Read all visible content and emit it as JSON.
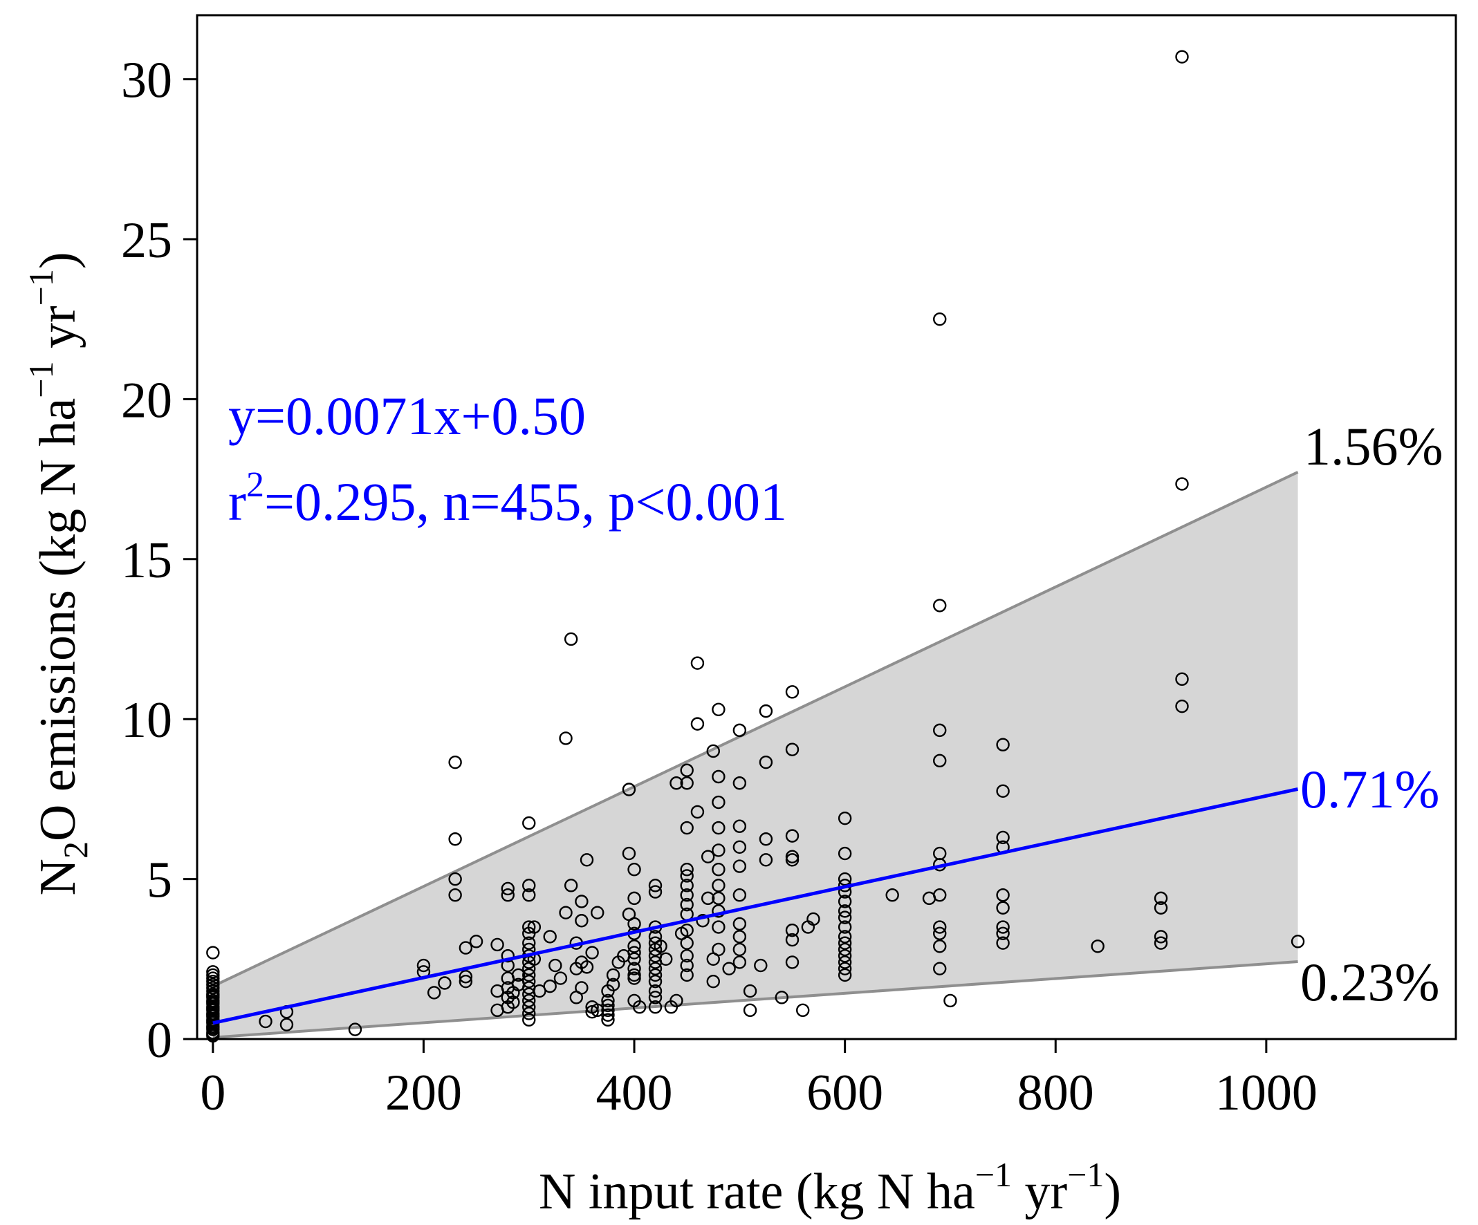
{
  "chart_data": {
    "type": "scatter",
    "title": "",
    "xlabel": "N input rate (kg N ha",
    "xlabel_sup1": "−1",
    "xlabel_mid": " yr",
    "xlabel_sup2": "−1",
    "xlabel_end": ")",
    "ylabel": {
      "prefix": "N",
      "sub": "2",
      "mid": "O emissions (kg N ha",
      "sup1": "−1",
      "mid2": " yr",
      "sup2": "−1",
      "end": ")"
    },
    "xlim": [
      -15,
      1180
    ],
    "ylim": [
      0,
      32
    ],
    "x_ticks": [
      0,
      200,
      400,
      600,
      800,
      1000
    ],
    "x_tick_labels": [
      "0",
      "200",
      "400",
      "600",
      "800",
      "1000"
    ],
    "y_ticks": [
      0,
      5,
      10,
      15,
      20,
      25,
      30
    ],
    "y_tick_labels": [
      "0",
      "5",
      "10",
      "15",
      "20",
      "25",
      "30"
    ],
    "fit": {
      "slope": 0.0071,
      "intercept": 0.5,
      "x_range": [
        0,
        1030
      ]
    },
    "band": {
      "upper": {
        "slope": 0.0156,
        "intercept": 1.65
      },
      "lower": {
        "slope": 0.0023,
        "intercept": 0.05
      },
      "x_range": [
        0,
        1030
      ]
    },
    "annotation": {
      "equation": "y=0.0071x+0.50",
      "stats_prefix": "r",
      "stats_sup": "2",
      "stats_rest": "=0.295, n=455, p<0.001"
    },
    "line_labels": {
      "upper": "1.56%",
      "fit": "0.71%",
      "lower": "0.23%"
    },
    "colors": {
      "fit": "#0000ff",
      "band": "#d6d6d6",
      "bound": "#8f8f8f",
      "points": "#000000"
    },
    "points": [
      [
        0,
        0.1
      ],
      [
        0,
        0.2
      ],
      [
        0,
        0.3
      ],
      [
        0,
        0.4
      ],
      [
        0,
        0.5
      ],
      [
        0,
        0.6
      ],
      [
        0,
        0.7
      ],
      [
        0,
        0.8
      ],
      [
        0,
        0.9
      ],
      [
        0,
        1.0
      ],
      [
        0,
        1.1
      ],
      [
        0,
        1.2
      ],
      [
        0,
        1.3
      ],
      [
        0,
        1.4
      ],
      [
        0,
        1.5
      ],
      [
        0,
        1.6
      ],
      [
        0,
        1.7
      ],
      [
        0,
        1.8
      ],
      [
        0,
        1.9
      ],
      [
        0,
        2.0
      ],
      [
        0,
        2.1
      ],
      [
        0,
        2.7
      ],
      [
        0,
        0.15
      ],
      [
        0,
        0.35
      ],
      [
        0,
        0.55
      ],
      [
        0,
        0.75
      ],
      [
        0,
        0.95
      ],
      [
        0,
        1.15
      ],
      [
        0,
        1.35
      ],
      [
        50,
        0.55
      ],
      [
        70,
        0.45
      ],
      [
        70,
        0.85
      ],
      [
        135,
        0.3
      ],
      [
        200,
        2.3
      ],
      [
        200,
        2.1
      ],
      [
        210,
        1.45
      ],
      [
        220,
        1.75
      ],
      [
        230,
        8.65
      ],
      [
        230,
        6.25
      ],
      [
        230,
        5.0
      ],
      [
        230,
        4.5
      ],
      [
        240,
        1.8
      ],
      [
        240,
        1.95
      ],
      [
        240,
        2.85
      ],
      [
        250,
        3.05
      ],
      [
        270,
        0.9
      ],
      [
        270,
        1.5
      ],
      [
        270,
        2.95
      ],
      [
        280,
        1.0
      ],
      [
        280,
        1.3
      ],
      [
        280,
        1.6
      ],
      [
        280,
        1.9
      ],
      [
        280,
        2.3
      ],
      [
        280,
        2.6
      ],
      [
        280,
        4.5
      ],
      [
        280,
        4.7
      ],
      [
        285,
        1.15
      ],
      [
        285,
        1.45
      ],
      [
        290,
        1.7
      ],
      [
        290,
        2.0
      ],
      [
        300,
        0.6
      ],
      [
        300,
        0.8
      ],
      [
        300,
        1.0
      ],
      [
        300,
        1.2
      ],
      [
        300,
        1.4
      ],
      [
        300,
        1.6
      ],
      [
        300,
        1.8
      ],
      [
        300,
        2.0
      ],
      [
        300,
        2.2
      ],
      [
        300,
        2.4
      ],
      [
        300,
        2.6
      ],
      [
        300,
        2.8
      ],
      [
        300,
        3.0
      ],
      [
        300,
        3.3
      ],
      [
        300,
        3.5
      ],
      [
        300,
        4.5
      ],
      [
        300,
        4.8
      ],
      [
        300,
        6.75
      ],
      [
        305,
        2.5
      ],
      [
        305,
        3.5
      ],
      [
        310,
        1.5
      ],
      [
        320,
        1.65
      ],
      [
        320,
        3.2
      ],
      [
        325,
        2.3
      ],
      [
        330,
        1.9
      ],
      [
        335,
        9.4
      ],
      [
        335,
        3.95
      ],
      [
        340,
        12.5
      ],
      [
        340,
        4.8
      ],
      [
        345,
        1.3
      ],
      [
        345,
        2.2
      ],
      [
        345,
        3.0
      ],
      [
        350,
        1.6
      ],
      [
        350,
        2.4
      ],
      [
        350,
        3.7
      ],
      [
        350,
        4.3
      ],
      [
        355,
        2.25
      ],
      [
        355,
        5.6
      ],
      [
        360,
        0.85
      ],
      [
        360,
        1.0
      ],
      [
        360,
        2.7
      ],
      [
        365,
        0.9
      ],
      [
        365,
        3.95
      ],
      [
        375,
        0.6
      ],
      [
        375,
        0.75
      ],
      [
        375,
        0.9
      ],
      [
        375,
        1.05
      ],
      [
        375,
        1.2
      ],
      [
        375,
        1.5
      ],
      [
        380,
        1.7
      ],
      [
        380,
        2.0
      ],
      [
        385,
        2.4
      ],
      [
        390,
        2.6
      ],
      [
        395,
        7.8
      ],
      [
        395,
        5.8
      ],
      [
        395,
        3.9
      ],
      [
        400,
        1.2
      ],
      [
        400,
        1.9
      ],
      [
        400,
        2.0
      ],
      [
        400,
        2.2
      ],
      [
        400,
        2.5
      ],
      [
        400,
        2.7
      ],
      [
        400,
        2.9
      ],
      [
        400,
        3.3
      ],
      [
        400,
        3.6
      ],
      [
        400,
        4.4
      ],
      [
        400,
        5.3
      ],
      [
        405,
        1.0
      ],
      [
        420,
        1.0
      ],
      [
        420,
        1.3
      ],
      [
        420,
        1.5
      ],
      [
        420,
        1.8
      ],
      [
        420,
        2.0
      ],
      [
        420,
        2.2
      ],
      [
        420,
        2.4
      ],
      [
        420,
        2.6
      ],
      [
        420,
        2.8
      ],
      [
        420,
        3.0
      ],
      [
        420,
        3.2
      ],
      [
        420,
        3.5
      ],
      [
        420,
        4.6
      ],
      [
        420,
        4.8
      ],
      [
        425,
        2.9
      ],
      [
        430,
        2.5
      ],
      [
        435,
        1.0
      ],
      [
        440,
        8.0
      ],
      [
        440,
        1.2
      ],
      [
        445,
        3.3
      ],
      [
        450,
        2.0
      ],
      [
        450,
        2.3
      ],
      [
        450,
        2.6
      ],
      [
        450,
        3.0
      ],
      [
        450,
        3.4
      ],
      [
        450,
        3.9
      ],
      [
        450,
        4.2
      ],
      [
        450,
        4.5
      ],
      [
        450,
        4.8
      ],
      [
        450,
        5.1
      ],
      [
        450,
        5.3
      ],
      [
        450,
        6.6
      ],
      [
        450,
        8.4
      ],
      [
        450,
        8.0
      ],
      [
        460,
        11.75
      ],
      [
        460,
        9.85
      ],
      [
        460,
        7.1
      ],
      [
        465,
        3.7
      ],
      [
        470,
        4.4
      ],
      [
        470,
        5.7
      ],
      [
        475,
        1.8
      ],
      [
        475,
        2.5
      ],
      [
        475,
        9.0
      ],
      [
        480,
        10.3
      ],
      [
        480,
        8.2
      ],
      [
        480,
        7.4
      ],
      [
        480,
        6.6
      ],
      [
        480,
        5.9
      ],
      [
        480,
        5.3
      ],
      [
        480,
        4.8
      ],
      [
        480,
        4.4
      ],
      [
        480,
        4.0
      ],
      [
        480,
        3.5
      ],
      [
        480,
        2.8
      ],
      [
        490,
        2.2
      ],
      [
        500,
        9.65
      ],
      [
        500,
        8.0
      ],
      [
        500,
        6.65
      ],
      [
        500,
        6.0
      ],
      [
        500,
        5.4
      ],
      [
        500,
        4.5
      ],
      [
        500,
        3.6
      ],
      [
        500,
        3.2
      ],
      [
        500,
        2.8
      ],
      [
        500,
        2.4
      ],
      [
        510,
        0.9
      ],
      [
        510,
        1.5
      ],
      [
        520,
        2.3
      ],
      [
        525,
        10.25
      ],
      [
        525,
        8.65
      ],
      [
        525,
        6.25
      ],
      [
        525,
        5.6
      ],
      [
        540,
        1.3
      ],
      [
        550,
        10.85
      ],
      [
        550,
        9.05
      ],
      [
        550,
        6.35
      ],
      [
        550,
        5.7
      ],
      [
        550,
        5.6
      ],
      [
        550,
        3.4
      ],
      [
        550,
        3.1
      ],
      [
        550,
        2.4
      ],
      [
        560,
        0.9
      ],
      [
        565,
        3.5
      ],
      [
        570,
        3.75
      ],
      [
        600,
        6.9
      ],
      [
        600,
        5.8
      ],
      [
        600,
        5.0
      ],
      [
        600,
        4.8
      ],
      [
        600,
        4.6
      ],
      [
        600,
        4.3
      ],
      [
        600,
        4.0
      ],
      [
        600,
        3.8
      ],
      [
        600,
        3.5
      ],
      [
        600,
        3.2
      ],
      [
        600,
        3.0
      ],
      [
        600,
        2.8
      ],
      [
        600,
        2.6
      ],
      [
        600,
        2.4
      ],
      [
        600,
        2.2
      ],
      [
        600,
        2.0
      ],
      [
        645,
        4.5
      ],
      [
        680,
        4.4
      ],
      [
        690,
        22.5
      ],
      [
        690,
        13.55
      ],
      [
        690,
        9.65
      ],
      [
        690,
        8.7
      ],
      [
        690,
        5.8
      ],
      [
        690,
        5.45
      ],
      [
        690,
        4.5
      ],
      [
        690,
        3.5
      ],
      [
        690,
        3.3
      ],
      [
        690,
        2.9
      ],
      [
        690,
        2.2
      ],
      [
        700,
        1.2
      ],
      [
        750,
        9.2
      ],
      [
        750,
        7.75
      ],
      [
        750,
        6.3
      ],
      [
        750,
        6.0
      ],
      [
        750,
        4.5
      ],
      [
        750,
        4.1
      ],
      [
        750,
        3.5
      ],
      [
        750,
        3.3
      ],
      [
        750,
        3.0
      ],
      [
        840,
        2.9
      ],
      [
        900,
        4.4
      ],
      [
        900,
        4.1
      ],
      [
        900,
        3.2
      ],
      [
        900,
        3.0
      ],
      [
        920,
        30.7
      ],
      [
        920,
        17.35
      ],
      [
        920,
        11.25
      ],
      [
        920,
        10.4
      ],
      [
        1030,
        3.05
      ]
    ]
  }
}
